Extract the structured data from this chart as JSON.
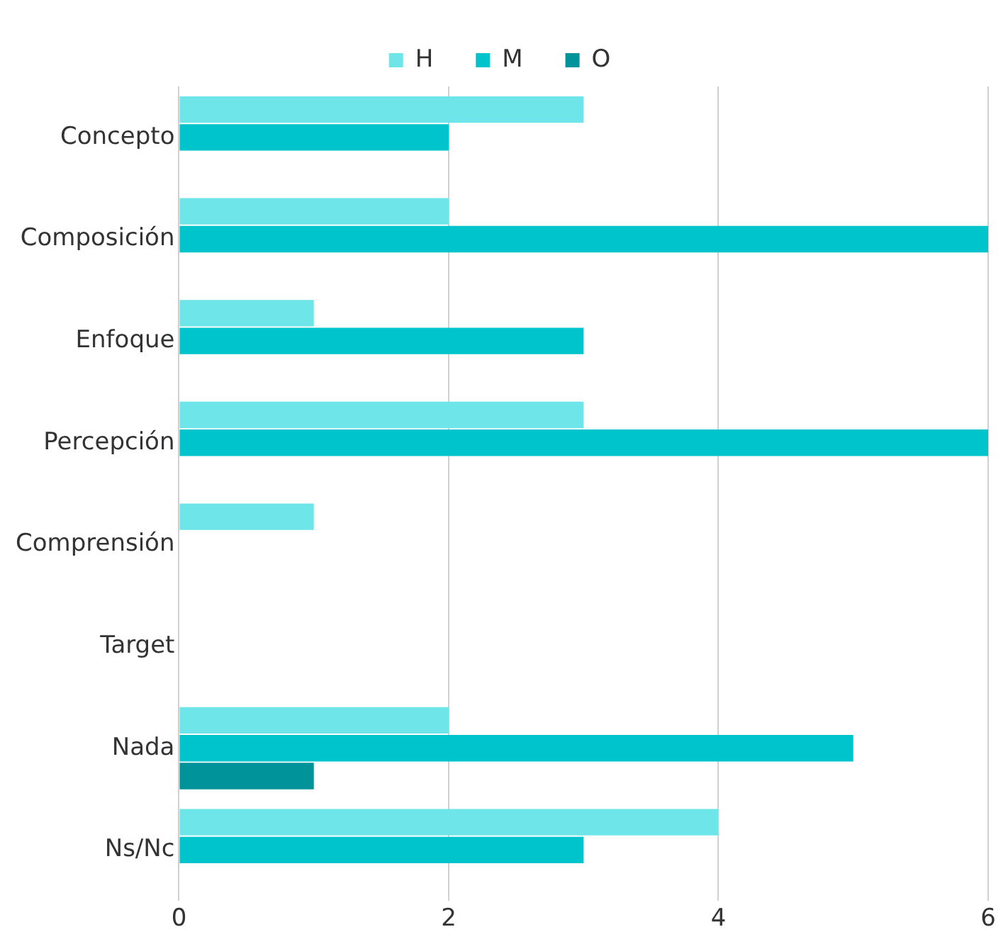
{
  "chart_data": {
    "type": "bar",
    "orientation": "horizontal",
    "categories": [
      "Concepto",
      "Composición",
      "Enfoque",
      "Percepción",
      "Comprensión",
      "Target",
      "Nada",
      "Ns/Nc"
    ],
    "series": [
      {
        "name": "H",
        "color": "#6ee6e9",
        "values": [
          3,
          2,
          1,
          3,
          1,
          0,
          2,
          4
        ]
      },
      {
        "name": "M",
        "color": "#00c4cc",
        "values": [
          2,
          6,
          3,
          6,
          0,
          0,
          5,
          3
        ]
      },
      {
        "name": "O",
        "color": "#009399",
        "values": [
          0,
          0,
          0,
          0,
          0,
          0,
          1,
          0
        ]
      }
    ],
    "xlim": [
      0,
      6
    ],
    "xticks": [
      0,
      2,
      4,
      6
    ],
    "grid": "x",
    "legend": "top"
  }
}
